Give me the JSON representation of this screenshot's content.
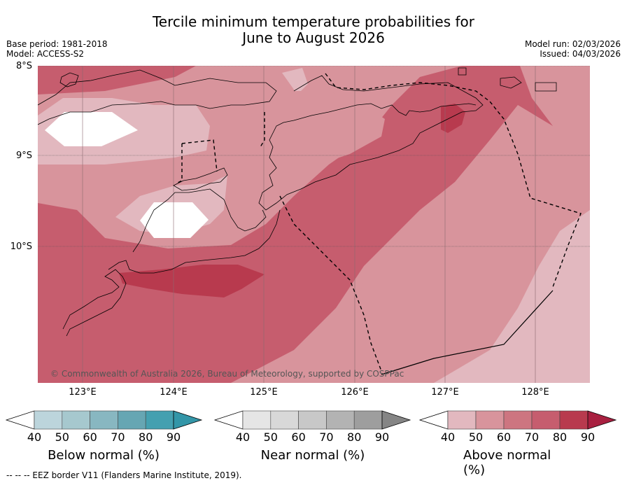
{
  "header": {
    "title_line1": "Tercile minimum temperature probabilities for",
    "title_line2": "June to August 2026",
    "base_period": "Base period: 1981-2018",
    "model": "Model: ACCESS-S2",
    "model_run": "Model run: 02/03/2026",
    "issued": "Issued: 04/03/2026"
  },
  "map": {
    "lat_labels": [
      "8°S",
      "9°S",
      "10°S"
    ],
    "lon_labels": [
      "123°E",
      "124°E",
      "125°E",
      "126°E",
      "127°E",
      "128°E"
    ],
    "copyright": "© Commonwealth of Australia 2026, Bureau of Meteorology, supported by COSPPac"
  },
  "legend": {
    "below": {
      "label": "Below normal (%)",
      "ticks": [
        "40",
        "50",
        "60",
        "70",
        "80",
        "90"
      ],
      "colors": [
        "#bcd5dc",
        "#a6c8ce",
        "#88b7c1",
        "#66a6b3",
        "#44a0b0",
        "#3396a8"
      ]
    },
    "near": {
      "label": "Near normal (%)",
      "ticks": [
        "40",
        "50",
        "60",
        "70",
        "80",
        "90"
      ],
      "colors": [
        "#e5e5e5",
        "#d8d8d8",
        "#c8c8c8",
        "#b3b3b3",
        "#9e9e9e",
        "#858585"
      ]
    },
    "above": {
      "label": "Above normal (%)",
      "ticks": [
        "40",
        "50",
        "60",
        "70",
        "80",
        "90"
      ],
      "colors": [
        "#e2b8bf",
        "#d8949c",
        "#cd7580",
        "#c65d6e",
        "#b83a4e",
        "#a82040"
      ]
    }
  },
  "footer": {
    "eez_note": "--  --  -- EEZ border V11 (Flanders Marine Institute, 2019)."
  }
}
